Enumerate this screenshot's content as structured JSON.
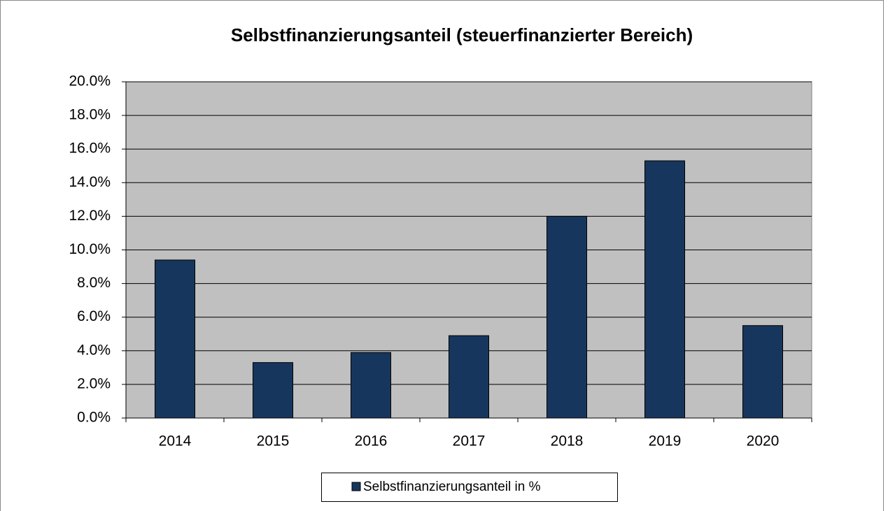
{
  "chart_data": {
    "type": "bar",
    "title": "Selbstfinanzierungsanteil (steuerfinanzierter Bereich)",
    "categories": [
      "2014",
      "2015",
      "2016",
      "2017",
      "2018",
      "2019",
      "2020"
    ],
    "series": [
      {
        "name": "Selbstfinanzierungsanteil in %",
        "color": "#17365d",
        "values": [
          9.4,
          3.3,
          3.9,
          4.9,
          12.0,
          15.3,
          5.5
        ]
      }
    ],
    "ylim": [
      0,
      20
    ],
    "yticks": [
      {
        "value": 0,
        "label": "0.0%"
      },
      {
        "value": 2,
        "label": "2.0%"
      },
      {
        "value": 4,
        "label": "4.0%"
      },
      {
        "value": 6,
        "label": "6.0%"
      },
      {
        "value": 8,
        "label": "8.0%"
      },
      {
        "value": 10,
        "label": "10.0%"
      },
      {
        "value": 12,
        "label": "12.0%"
      },
      {
        "value": 14,
        "label": "14.0%"
      },
      {
        "value": 16,
        "label": "16.0%"
      },
      {
        "value": 18,
        "label": "18.0%"
      },
      {
        "value": 20,
        "label": "20.0%"
      }
    ],
    "grid": true,
    "plot_background": "#c0c0c0",
    "legend": "bottom"
  }
}
